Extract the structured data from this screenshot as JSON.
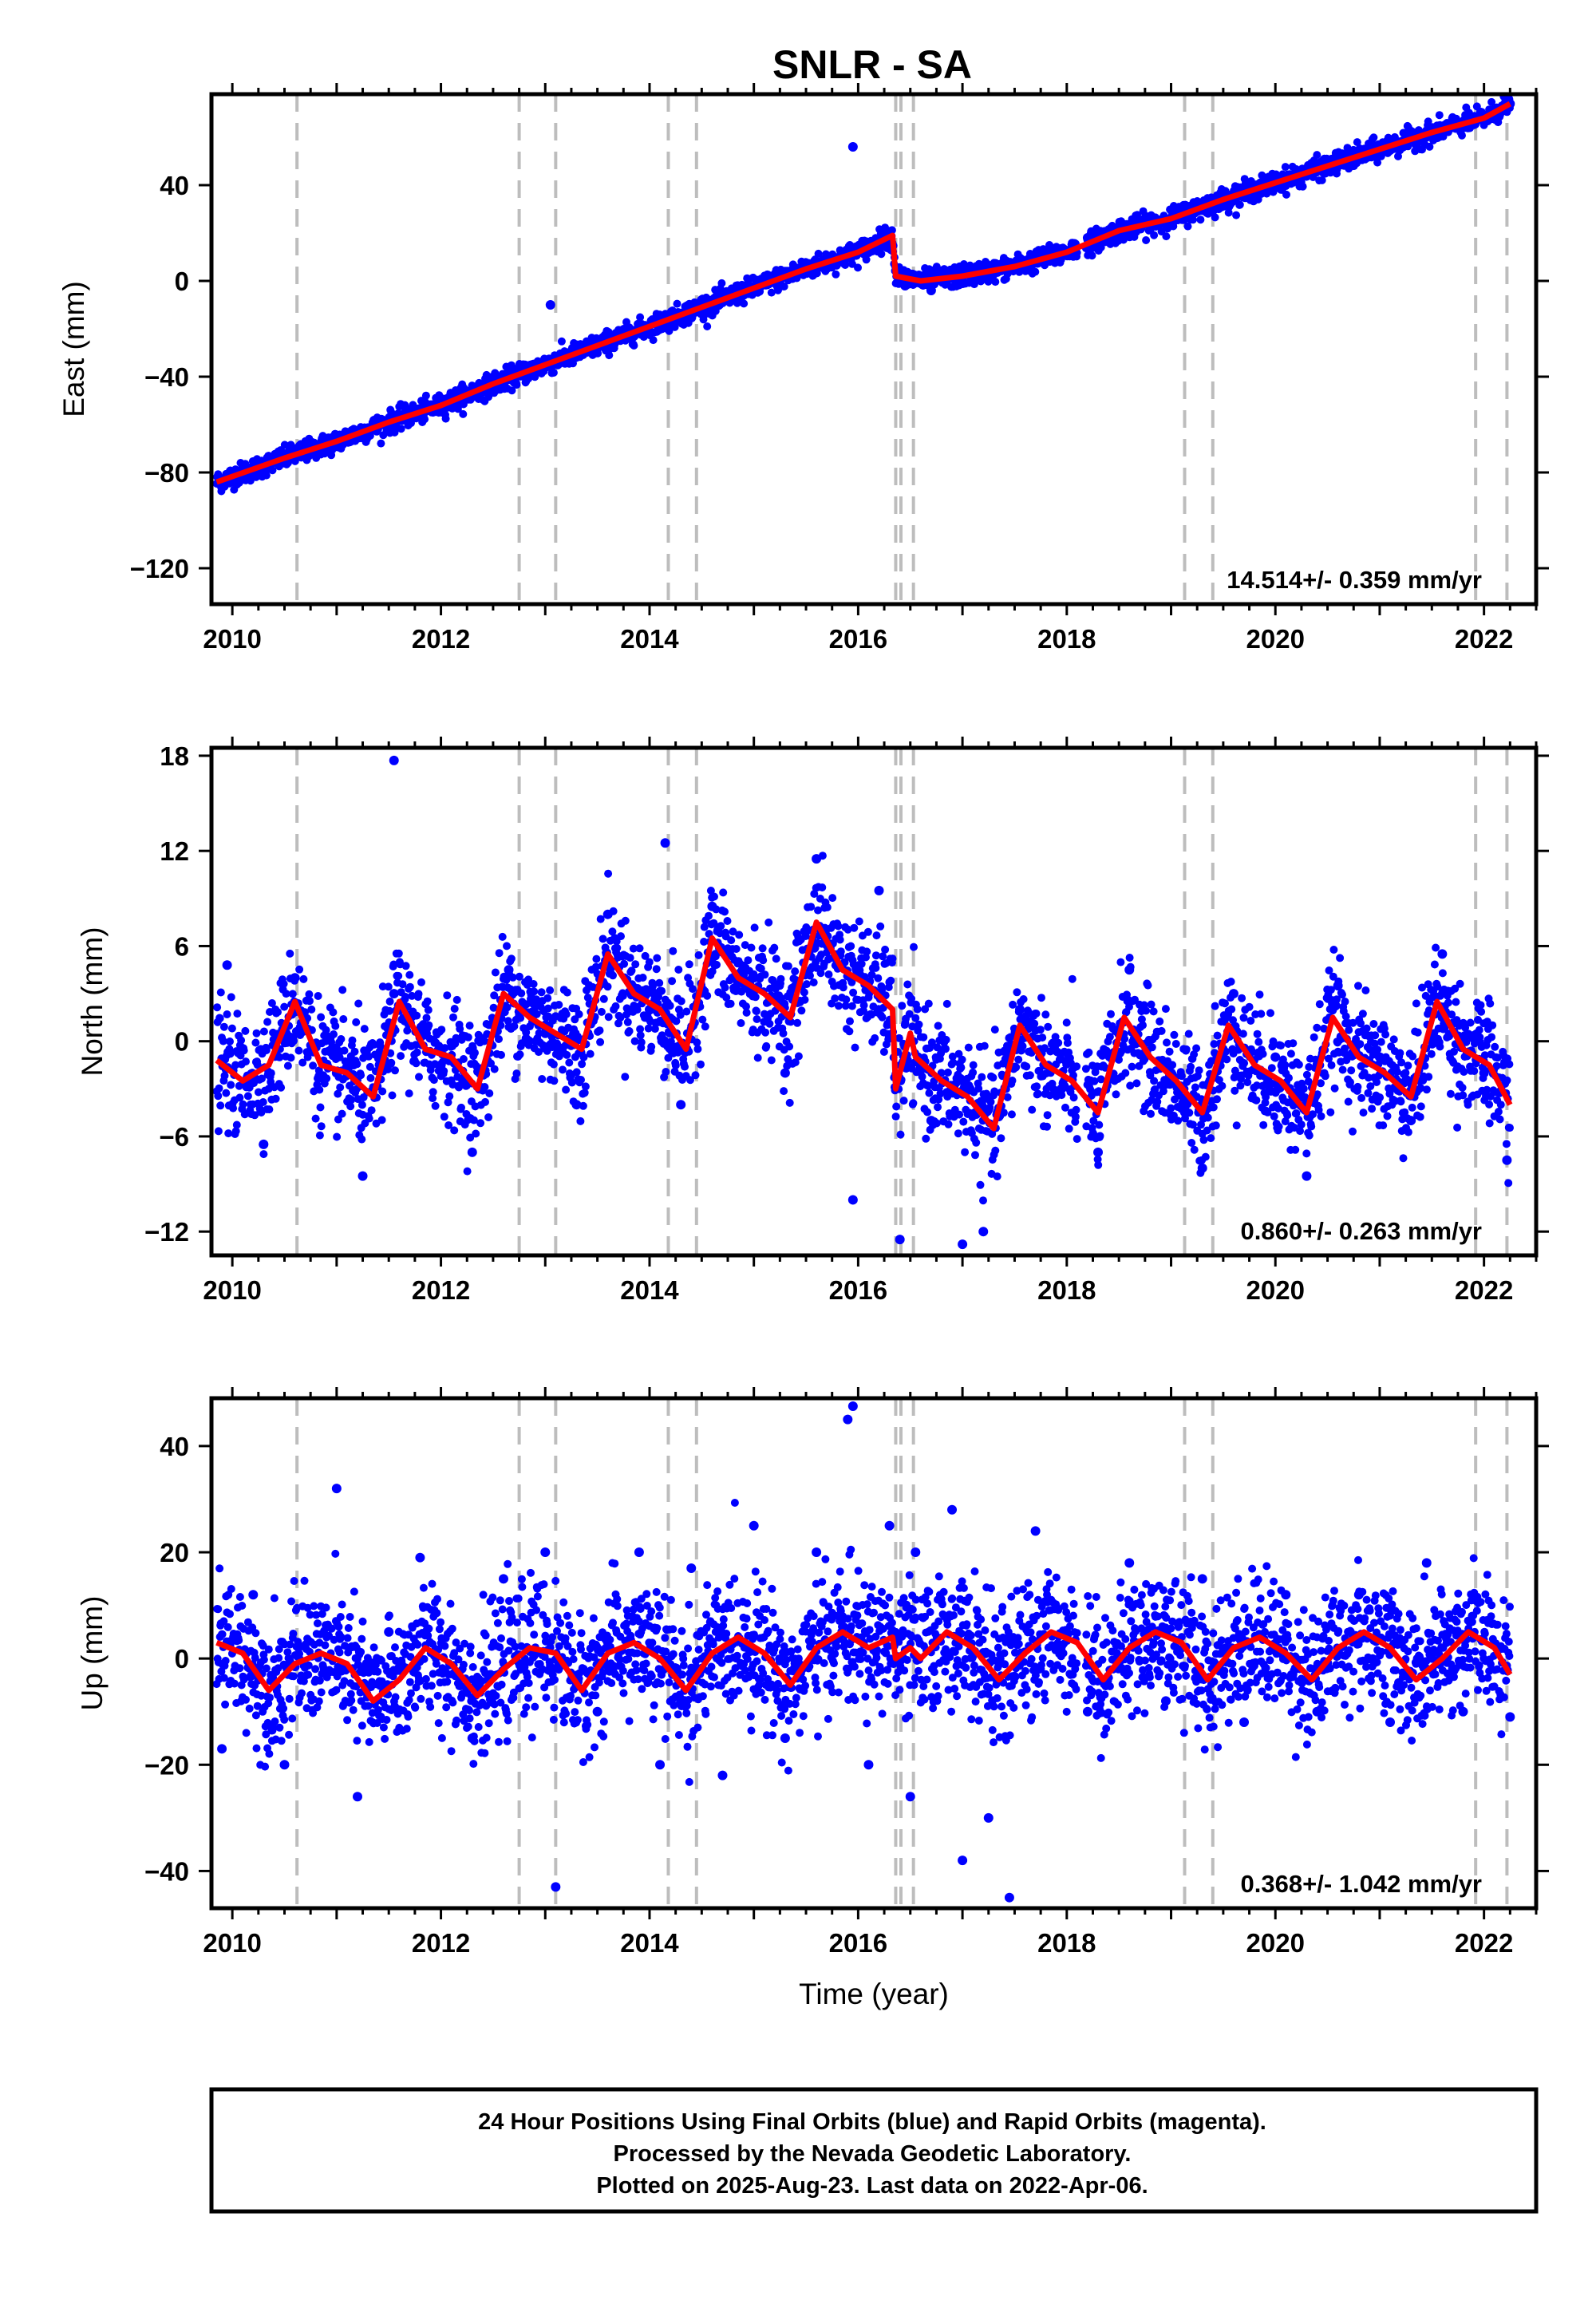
{
  "chart_data": [
    {
      "type": "scatter",
      "panel": "east",
      "title": "SNLR - SA",
      "ylabel": "East (mm)",
      "xlabel": "",
      "xlim": [
        2009.8,
        2022.5
      ],
      "ylim": [
        -135,
        78
      ],
      "xticks": [
        2010,
        2012,
        2014,
        2016,
        2018,
        2020,
        2022
      ],
      "yticks": [
        -120,
        -80,
        -40,
        0,
        40
      ],
      "rate_label": "14.514+/- 0.359 mm/yr",
      "event_lines": [
        2010.62,
        2012.75,
        2013.1,
        2014.18,
        2014.45,
        2016.36,
        2016.41,
        2016.53,
        2019.13,
        2019.4,
        2021.92,
        2022.22
      ],
      "model_line": {
        "name": "",
        "color": "#ff0000",
        "x": [
          2009.85,
          2010.5,
          2011.0,
          2011.5,
          2012.0,
          2012.5,
          2013.0,
          2013.5,
          2014.0,
          2014.5,
          2015.0,
          2015.5,
          2016.0,
          2016.33,
          2016.36,
          2016.6,
          2017.0,
          2017.5,
          2018.0,
          2018.5,
          2019.0,
          2019.5,
          2020.0,
          2020.5,
          2021.0,
          2021.5,
          2022.0,
          2022.25
        ],
        "y": [
          -84,
          -74,
          -67,
          -59,
          -52,
          -43,
          -35,
          -27,
          -19,
          -11,
          -3,
          5,
          12,
          19,
          2,
          0,
          2,
          6,
          12,
          21,
          26,
          34,
          41,
          48,
          55,
          62,
          68,
          74
        ]
      },
      "series": [
        {
          "name": "",
          "color": "#0000ff",
          "x": [
            2009.9,
            2010.1,
            2010.4,
            2010.7,
            2011.0,
            2011.3,
            2011.5,
            2011.8,
            2012.1,
            2012.4,
            2012.7,
            2013.0,
            2013.05,
            2013.3,
            2013.6,
            2013.9,
            2014.2,
            2014.5,
            2014.8,
            2015.1,
            2015.4,
            2015.7,
            2015.95,
            2016.1,
            2016.3,
            2016.45,
            2016.7,
            2017.0,
            2017.3,
            2017.6,
            2017.9,
            2018.2,
            2018.5,
            2018.8,
            2019.1,
            2019.4,
            2019.7,
            2020.0,
            2020.3,
            2020.6,
            2020.9,
            2021.2,
            2021.5,
            2021.8,
            2022.1,
            2022.25
          ],
          "y": [
            -86,
            -80,
            -75,
            -70,
            -66,
            -62,
            -58,
            -55,
            -50,
            -46,
            -40,
            -36,
            -10,
            -30,
            -24,
            -21,
            -17,
            -8,
            -5,
            -1,
            5,
            9,
            56,
            12,
            20,
            -2,
            -4,
            -1,
            4,
            8,
            12,
            18,
            21,
            22,
            26,
            30,
            36,
            40,
            44,
            50,
            52,
            58,
            62,
            66,
            70,
            74
          ]
        }
      ]
    },
    {
      "type": "scatter",
      "panel": "north",
      "title": "",
      "ylabel": "North (mm)",
      "xlabel": "",
      "xlim": [
        2009.8,
        2022.5
      ],
      "ylim": [
        -13.5,
        18.5
      ],
      "xticks": [
        2010,
        2012,
        2014,
        2016,
        2018,
        2020,
        2022
      ],
      "yticks": [
        -12,
        -6,
        0,
        6,
        12,
        18
      ],
      "rate_label": "0.860+/- 0.263 mm/yr",
      "event_lines": [
        2010.62,
        2012.75,
        2013.1,
        2014.18,
        2014.45,
        2016.36,
        2016.41,
        2016.53,
        2019.13,
        2019.4,
        2021.92,
        2022.22
      ],
      "model_line": {
        "name": "",
        "color": "#ff0000",
        "x": [
          2009.85,
          2010.1,
          2010.35,
          2010.6,
          2010.85,
          2011.1,
          2011.35,
          2011.6,
          2011.85,
          2012.1,
          2012.35,
          2012.6,
          2012.85,
          2013.1,
          2013.35,
          2013.6,
          2013.85,
          2014.1,
          2014.35,
          2014.6,
          2014.85,
          2015.1,
          2015.35,
          2015.6,
          2015.85,
          2016.1,
          2016.33,
          2016.36,
          2016.5,
          2016.55,
          2016.8,
          2017.05,
          2017.3,
          2017.55,
          2017.8,
          2018.05,
          2018.3,
          2018.55,
          2018.8,
          2019.05,
          2019.3,
          2019.55,
          2019.8,
          2020.05,
          2020.3,
          2020.55,
          2020.8,
          2021.05,
          2021.3,
          2021.55,
          2021.8,
          2022.05,
          2022.25
        ],
        "y": [
          -1.2,
          -2.5,
          -1.5,
          2.5,
          -1.5,
          -2,
          -3.5,
          2.5,
          -0.5,
          -1,
          -3,
          3,
          1.5,
          0.5,
          -0.5,
          5.5,
          3,
          2,
          -0.5,
          6.5,
          4,
          3,
          1.5,
          7.5,
          4.5,
          3.5,
          2,
          -3,
          0.5,
          -1,
          -2.5,
          -3.5,
          -5.5,
          1,
          -1.5,
          -2.5,
          -4.5,
          1.5,
          -1,
          -2.5,
          -4.5,
          1,
          -1.5,
          -2.5,
          -4.5,
          1.5,
          -1,
          -2,
          -3.5,
          2.5,
          -0.5,
          -1.5,
          -4
        ]
      },
      "series": [
        {
          "name": "",
          "color": "#0000ff",
          "x": [
            2009.95,
            2010.3,
            2010.6,
            2011.0,
            2011.25,
            2011.55,
            2012.0,
            2012.3,
            2012.65,
            2013.0,
            2013.3,
            2013.6,
            2014.0,
            2014.15,
            2014.3,
            2014.6,
            2015.0,
            2015.3,
            2015.6,
            2015.95,
            2016.2,
            2016.4,
            2016.7,
            2017.0,
            2017.2,
            2017.55,
            2017.95,
            2018.3,
            2018.6,
            2019.0,
            2019.3,
            2019.6,
            2020.0,
            2020.3,
            2020.6,
            2021.0,
            2021.3,
            2021.6,
            2022.0,
            2022.22
          ],
          "y": [
            4.8,
            -6.5,
            4,
            -2,
            -8.5,
            3,
            -1.5,
            -7,
            4.5,
            0.5,
            -4,
            8,
            2,
            12.5,
            -4,
            8.5,
            4,
            -2,
            11.5,
            -10,
            9.5,
            -12.5,
            -5,
            -12.8,
            -12,
            2,
            -3,
            -7,
            4.5,
            -2,
            -8,
            3,
            -1,
            -8.5,
            3.5,
            -1,
            -5,
            5.5,
            -2,
            -7.5
          ]
        },
        {
          "name": "",
          "color": "#0000ff",
          "x": [
            2011.55
          ],
          "y": [
            17.7
          ]
        }
      ]
    },
    {
      "type": "scatter",
      "panel": "up",
      "title": "",
      "ylabel": "Up (mm)",
      "xlabel": "Time (year)",
      "xlim": [
        2009.8,
        2022.5
      ],
      "ylim": [
        -47,
        49
      ],
      "xticks": [
        2010,
        2012,
        2014,
        2016,
        2018,
        2020,
        2022
      ],
      "yticks": [
        -40,
        -20,
        0,
        20,
        40
      ],
      "rate_label": "0.368+/- 1.042 mm/yr",
      "event_lines": [
        2010.62,
        2012.75,
        2013.1,
        2014.18,
        2014.45,
        2016.36,
        2016.41,
        2016.53,
        2019.13,
        2019.4,
        2021.92,
        2022.22
      ],
      "model_line": {
        "name": "",
        "color": "#ff0000",
        "x": [
          2009.85,
          2010.1,
          2010.35,
          2010.6,
          2010.85,
          2011.1,
          2011.35,
          2011.6,
          2011.85,
          2012.1,
          2012.35,
          2012.6,
          2012.85,
          2013.1,
          2013.35,
          2013.6,
          2013.85,
          2014.1,
          2014.35,
          2014.6,
          2014.85,
          2015.1,
          2015.35,
          2015.6,
          2015.85,
          2016.1,
          2016.33,
          2016.36,
          2016.5,
          2016.6,
          2016.85,
          2017.1,
          2017.35,
          2017.6,
          2017.85,
          2018.1,
          2018.35,
          2018.6,
          2018.85,
          2019.1,
          2019.35,
          2019.6,
          2019.85,
          2020.1,
          2020.35,
          2020.6,
          2020.85,
          2021.1,
          2021.35,
          2021.6,
          2021.85,
          2022.1,
          2022.25
        ],
        "y": [
          3,
          1,
          -6,
          -1,
          1,
          -1,
          -8,
          -4,
          2,
          -1,
          -7,
          -2,
          2,
          1,
          -6,
          1,
          3,
          0,
          -6,
          1,
          4,
          1,
          -5,
          2,
          5,
          2,
          4,
          0,
          2,
          0,
          5,
          2,
          -4,
          1,
          5,
          3,
          -4,
          2,
          5,
          3,
          -4,
          2,
          4,
          1,
          -4,
          2,
          5,
          2,
          -4,
          0,
          5,
          2,
          -3
        ]
      },
      "series": [
        {
          "name": "",
          "color": "#0000ff",
          "x": [
            2009.9,
            2010.2,
            2010.5,
            2011.0,
            2011.2,
            2011.5,
            2011.8,
            2012.3,
            2012.6,
            2013.0,
            2013.1,
            2013.5,
            2013.9,
            2014.1,
            2014.4,
            2014.7,
            2015.0,
            2015.3,
            2015.6,
            2015.9,
            2015.95,
            2016.1,
            2016.3,
            2016.5,
            2016.55,
            2016.9,
            2017.0,
            2017.25,
            2017.45,
            2017.7,
            2018.2,
            2018.6,
            2018.95,
            2019.3,
            2019.7,
            2020.1,
            2020.4,
            2020.8,
            2021.1,
            2021.45,
            2021.8,
            2022.25
          ],
          "y": [
            -17,
            12,
            -20,
            32,
            -26,
            5,
            19,
            -15,
            15,
            20,
            -43,
            -10,
            20,
            -20,
            17,
            -22,
            25,
            -15,
            20,
            45,
            47.5,
            -20,
            25,
            -26,
            20,
            28,
            -38,
            -30,
            -45,
            24,
            -10,
            18,
            -8,
            15,
            -12,
            12,
            -10,
            12,
            -12,
            18,
            -10,
            -11
          ]
        }
      ]
    }
  ],
  "footer": {
    "line1": "24 Hour Positions Using Final Orbits (blue) and Rapid Orbits (magenta).",
    "line2": "Processed by the Nevada Geodetic Laboratory.",
    "line3": "Plotted on 2025-Aug-23. Last data on 2022-Apr-06."
  },
  "colors": {
    "points": "#0000ff",
    "model": "#ff0000",
    "event_lines": "#bdbdbd"
  }
}
